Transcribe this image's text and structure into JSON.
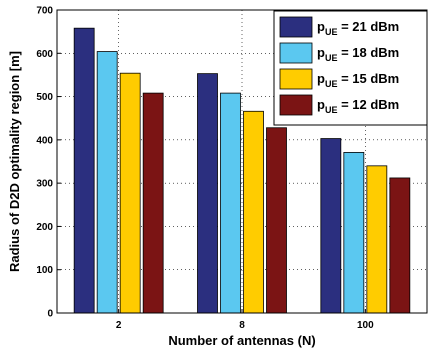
{
  "chart_data": {
    "type": "bar",
    "title": "",
    "xlabel": "Number of antennas (N)",
    "ylabel": "Radius of D2D optimality region [m]",
    "categories": [
      "2",
      "8",
      "100"
    ],
    "ylim": [
      0,
      700
    ],
    "yticks": [
      0,
      100,
      200,
      300,
      400,
      500,
      600,
      700
    ],
    "grid": true,
    "legend_position": "top-right",
    "series": [
      {
        "name": "p_UE = 21 dBm",
        "legend_main": "p",
        "legend_sub": "UE",
        "legend_rest": " = 21 dBm",
        "color": "#2b2f7f",
        "values": [
          658,
          553,
          403
        ]
      },
      {
        "name": "p_UE = 18 dBm",
        "legend_main": "p",
        "legend_sub": "UE",
        "legend_rest": " = 18 dBm",
        "color": "#5bc8f0",
        "values": [
          604,
          508,
          371
        ]
      },
      {
        "name": "p_UE = 15 dBm",
        "legend_main": "p",
        "legend_sub": "UE",
        "legend_rest": " = 15 dBm",
        "color": "#ffcc00",
        "values": [
          554,
          466,
          340
        ]
      },
      {
        "name": "p_UE = 12 dBm",
        "legend_main": "p",
        "legend_sub": "UE",
        "legend_rest": " = 12 dBm",
        "color": "#7b1414",
        "values": [
          508,
          428,
          312
        ]
      }
    ]
  }
}
